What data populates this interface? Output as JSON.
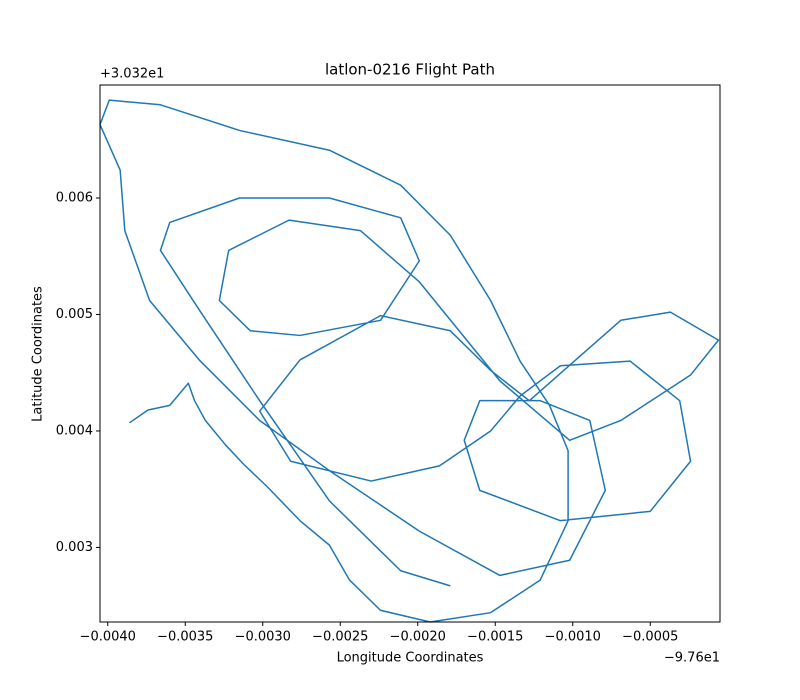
{
  "chart_data": {
    "type": "line",
    "title": "latlon-0216 Flight Path",
    "x_label": "Longitude Coordinates",
    "y_label": "Latitude Coordinates",
    "x_offset_label": "−9.76e1",
    "y_offset_label": "+3.032e1",
    "color": "#1f77b4",
    "xlim": [
      -0.00405,
      -5e-05
    ],
    "ylim": [
      0.00236,
      0.00697
    ],
    "xticks": [
      {
        "value": -0.004,
        "label": "−0.0040"
      },
      {
        "value": -0.0035,
        "label": "−0.0035"
      },
      {
        "value": -0.003,
        "label": "−0.0030"
      },
      {
        "value": -0.0025,
        "label": "−0.0025"
      },
      {
        "value": -0.002,
        "label": "−0.0020"
      },
      {
        "value": -0.0015,
        "label": "−0.0015"
      },
      {
        "value": -0.001,
        "label": "−0.0010"
      },
      {
        "value": -0.0005,
        "label": "−0.0005"
      }
    ],
    "yticks": [
      0.003,
      0.004,
      0.005,
      0.006
    ],
    "x": [
      -0.00386,
      -0.00374,
      -0.0036,
      -0.00348,
      -0.00344,
      -0.00337,
      -0.00324,
      -0.00312,
      -0.00297,
      -0.00276,
      -0.00257,
      -0.00244,
      -0.00224,
      -0.00192,
      -0.00153,
      -0.00121,
      -0.00103,
      -0.00103,
      -0.00115,
      -0.00134,
      -0.00153,
      -0.00179,
      -0.00211,
      -0.00257,
      -0.00315,
      -0.00366,
      -0.00399,
      -0.00405,
      -0.00392,
      -0.00389,
      -0.00373,
      -0.00341,
      -0.00302,
      -0.00257,
      -0.00199,
      -0.00147,
      -0.00102,
      -0.00079,
      -0.00089,
      -0.00121,
      -0.0016,
      -0.0017,
      -0.0016,
      -0.00108,
      -0.0005,
      -0.00024,
      -0.00031,
      -0.00063,
      -0.00108,
      -0.00134,
      -0.00153,
      -0.00186,
      -0.0023,
      -0.00282,
      -0.00302,
      -0.00276,
      -0.00224,
      -0.00179,
      -0.00153,
      -0.00128,
      -0.00069,
      -0.00037,
      -6e-05,
      -0.00024,
      -0.00069,
      -0.00102,
      -0.00147,
      -0.00199,
      -0.00237,
      -0.00283,
      -0.00322,
      -0.00328,
      -0.00308,
      -0.00276,
      -0.00224,
      -0.00199,
      -0.00211,
      -0.00257,
      -0.00315,
      -0.0036,
      -0.00366,
      -0.00341,
      -0.00302,
      -0.00257,
      -0.00211,
      -0.00179
    ],
    "values": [
      0.00407,
      0.00418,
      0.00422,
      0.00441,
      0.00426,
      0.00409,
      0.00388,
      0.00371,
      0.00352,
      0.00323,
      0.00302,
      0.00272,
      0.00246,
      0.00236,
      0.00244,
      0.00272,
      0.00323,
      0.00383,
      0.00422,
      0.0046,
      0.00512,
      0.00568,
      0.00611,
      0.00641,
      0.00658,
      0.0068,
      0.00684,
      0.00663,
      0.00624,
      0.00572,
      0.00512,
      0.00461,
      0.00409,
      0.00366,
      0.00314,
      0.00276,
      0.00289,
      0.00349,
      0.00409,
      0.00426,
      0.00426,
      0.00392,
      0.00349,
      0.00323,
      0.00331,
      0.00374,
      0.00426,
      0.0046,
      0.00456,
      0.0043,
      0.004,
      0.0037,
      0.00357,
      0.00374,
      0.00417,
      0.00461,
      0.00499,
      0.00486,
      0.00452,
      0.00426,
      0.00495,
      0.00502,
      0.00478,
      0.00448,
      0.00409,
      0.00392,
      0.00443,
      0.00528,
      0.00572,
      0.00581,
      0.00555,
      0.00512,
      0.00486,
      0.00482,
      0.00495,
      0.00546,
      0.00583,
      0.006,
      0.006,
      0.00579,
      0.00555,
      0.00504,
      0.00426,
      0.0034,
      0.0028,
      0.00267
    ]
  }
}
